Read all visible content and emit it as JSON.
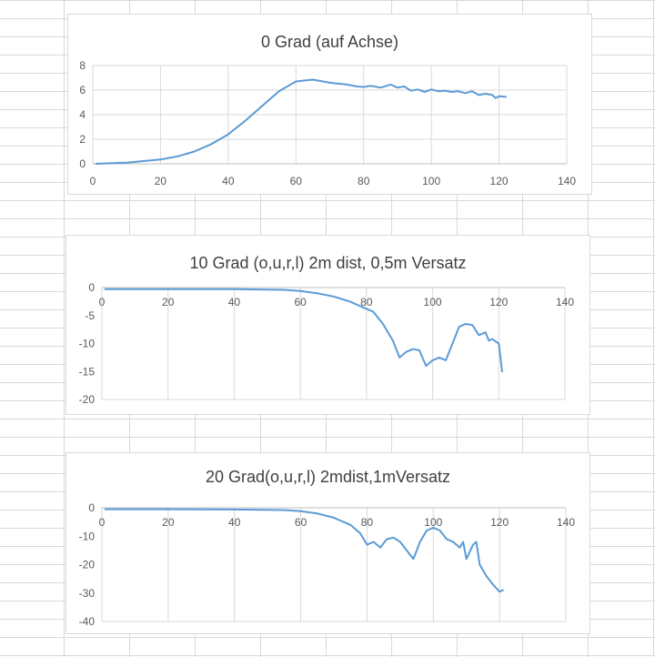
{
  "chart_data": [
    {
      "type": "line",
      "title": "0 Grad (auf Achse)",
      "xlim": [
        0,
        140
      ],
      "ylim": [
        0,
        8
      ],
      "xticks": [
        0,
        20,
        40,
        60,
        80,
        100,
        120,
        140
      ],
      "yticks": [
        0,
        2,
        4,
        6,
        8
      ],
      "x_gridlines": true,
      "y_gridlines": true,
      "line_color": "#5b9bd5",
      "series": [
        {
          "x": [
            1,
            10,
            20,
            25,
            30,
            35,
            40,
            45,
            50,
            55,
            60,
            65,
            70,
            75,
            78,
            80,
            82,
            85,
            88,
            90,
            92,
            94,
            96,
            98,
            100,
            102,
            104,
            106,
            108,
            110,
            112,
            114,
            116,
            118,
            119,
            120,
            122
          ],
          "y": [
            0.0,
            0.1,
            0.35,
            0.6,
            1.0,
            1.6,
            2.4,
            3.5,
            4.7,
            5.9,
            6.7,
            6.85,
            6.6,
            6.45,
            6.3,
            6.25,
            6.35,
            6.2,
            6.45,
            6.2,
            6.3,
            5.95,
            6.05,
            5.85,
            6.05,
            5.9,
            5.95,
            5.85,
            5.9,
            5.75,
            5.9,
            5.6,
            5.7,
            5.6,
            5.35,
            5.5,
            5.45
          ]
        }
      ]
    },
    {
      "type": "line",
      "title": "10 Grad (o,u,r,l) 2m dist, 0,5m Versatz",
      "xlim": [
        0,
        140
      ],
      "ylim": [
        -20,
        0
      ],
      "xticks": [
        0,
        20,
        40,
        60,
        80,
        100,
        120,
        140
      ],
      "yticks": [
        0,
        -5,
        -10,
        -15,
        -20
      ],
      "x_gridlines": true,
      "y_gridlines": false,
      "x_axis_at_top": true,
      "line_color": "#5b9bd5",
      "series": [
        {
          "x": [
            1,
            20,
            40,
            55,
            60,
            65,
            70,
            75,
            80,
            82,
            85,
            88,
            90,
            92,
            94,
            96,
            98,
            100,
            102,
            104,
            106,
            108,
            110,
            112,
            114,
            116,
            117,
            118,
            120,
            121
          ],
          "y": [
            -0.3,
            -0.3,
            -0.3,
            -0.4,
            -0.6,
            -1.0,
            -1.6,
            -2.5,
            -3.8,
            -4.3,
            -6.5,
            -9.5,
            -12.5,
            -11.5,
            -11.0,
            -11.2,
            -14.0,
            -13.0,
            -12.5,
            -13.0,
            -10.0,
            -7.0,
            -6.5,
            -6.7,
            -8.5,
            -8.0,
            -9.5,
            -9.2,
            -10.0,
            -15.0
          ]
        }
      ]
    },
    {
      "type": "line",
      "title": "20 Grad(o,u,r,l) 2mdist,1mVersatz",
      "xlim": [
        0,
        140
      ],
      "ylim": [
        -40,
        0
      ],
      "xticks": [
        0,
        20,
        40,
        60,
        80,
        100,
        120,
        140
      ],
      "yticks": [
        0,
        -10,
        -20,
        -30,
        -40
      ],
      "x_gridlines": true,
      "y_gridlines": false,
      "x_axis_at_top": true,
      "line_color": "#5b9bd5",
      "series": [
        {
          "x": [
            1,
            20,
            40,
            55,
            60,
            65,
            70,
            75,
            78,
            80,
            82,
            84,
            86,
            88,
            90,
            92,
            94,
            96,
            98,
            100,
            102,
            104,
            106,
            108,
            109,
            110,
            112,
            113,
            114,
            116,
            118,
            120,
            121
          ],
          "y": [
            -0.5,
            -0.5,
            -0.6,
            -0.8,
            -1.2,
            -2.0,
            -3.5,
            -6.0,
            -9.0,
            -13.0,
            -12.0,
            -14.0,
            -11.0,
            -10.5,
            -12.0,
            -15.0,
            -18.0,
            -12.0,
            -8.0,
            -7.0,
            -8.0,
            -11.0,
            -12.0,
            -14.0,
            -12.0,
            -18.0,
            -13.0,
            -12.0,
            -20.0,
            -24.0,
            -27.0,
            -29.5,
            -29.0
          ]
        }
      ]
    }
  ]
}
